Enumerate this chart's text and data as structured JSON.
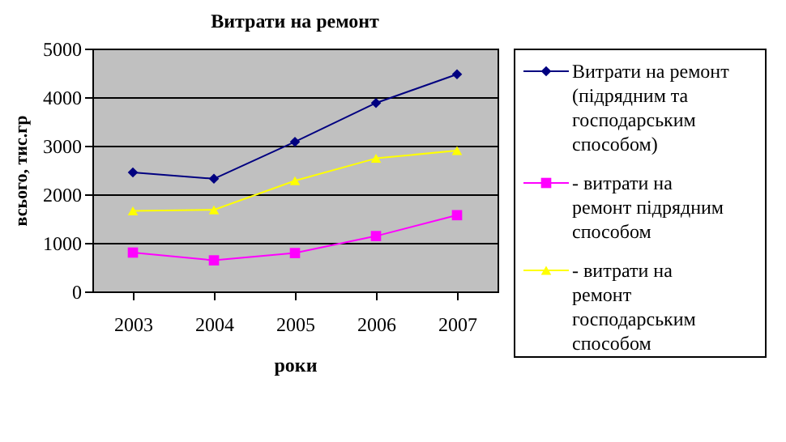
{
  "chart_data": {
    "type": "line",
    "title": "Витрати на ремонт",
    "xlabel": "роки",
    "ylabel": "всього, тис.гр",
    "categories": [
      "2003",
      "2004",
      "2005",
      "2006",
      "2007"
    ],
    "series": [
      {
        "name": "Витрати на ремонт (підрядним та господарським способом)",
        "color": "#000080",
        "marker": "diamond",
        "values": [
          2450,
          2320,
          3080,
          3880,
          4470
        ]
      },
      {
        "name": "- витрати на ремонт підрядним способом",
        "color": "#ff00ff",
        "marker": "square",
        "values": [
          800,
          640,
          790,
          1140,
          1570
        ]
      },
      {
        "name": "- витрати на ремонт господарським способом",
        "color": "#ffff00",
        "marker": "triangle",
        "values": [
          1660,
          1680,
          2280,
          2740,
          2900
        ]
      }
    ],
    "ylim": [
      0,
      5000
    ],
    "yticks": [
      0,
      1000,
      2000,
      3000,
      4000,
      5000
    ],
    "grid": "y",
    "legend": "right",
    "line_style": "solid"
  }
}
